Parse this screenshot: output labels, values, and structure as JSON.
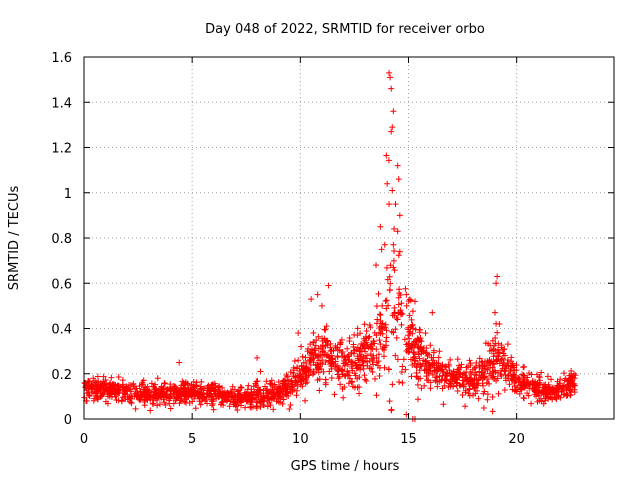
{
  "chart_data": {
    "type": "scatter",
    "title": "Day 048 of 2022, SRMTID for receiver orbo",
    "xlabel": "GPS time / hours",
    "ylabel": "SRMTID / TECUs",
    "xlim": [
      0,
      24.5
    ],
    "ylim": [
      0,
      1.6
    ],
    "xticks": [
      0,
      5,
      10,
      15,
      20
    ],
    "yticks": [
      0,
      0.2,
      0.4,
      0.6,
      0.8,
      1,
      1.2,
      1.4,
      1.6
    ],
    "xtick_labels": [
      "0",
      "5",
      "10",
      "15",
      "20"
    ],
    "ytick_labels": [
      "0",
      "0.2",
      "0.4",
      "0.6",
      "0.8",
      "1",
      "1.2",
      "1.4",
      "1.6"
    ],
    "grid": true,
    "marker": "+",
    "marker_color": "#ff0000",
    "point_count_shown": 2000,
    "profile": {
      "comment": "Approximate SRMTID envelope vs GPS hour (data units) used to regenerate the dense scatter",
      "hours": [
        0,
        1,
        2,
        3,
        4,
        5,
        6,
        7,
        8,
        9,
        10,
        10.5,
        11,
        11.5,
        12,
        12.5,
        13,
        13.5,
        14,
        14.2,
        14.5,
        15,
        15.5,
        16,
        16.5,
        17,
        18,
        18.5,
        19,
        19.3,
        20,
        21,
        22,
        22.8
      ],
      "median": [
        0.13,
        0.13,
        0.12,
        0.11,
        0.11,
        0.12,
        0.11,
        0.09,
        0.1,
        0.12,
        0.18,
        0.25,
        0.3,
        0.25,
        0.22,
        0.25,
        0.28,
        0.35,
        0.45,
        0.55,
        0.5,
        0.35,
        0.28,
        0.22,
        0.2,
        0.18,
        0.17,
        0.2,
        0.25,
        0.28,
        0.16,
        0.13,
        0.13,
        0.18
      ],
      "spread": [
        0.04,
        0.04,
        0.04,
        0.04,
        0.04,
        0.04,
        0.04,
        0.04,
        0.05,
        0.06,
        0.08,
        0.1,
        0.12,
        0.1,
        0.1,
        0.1,
        0.1,
        0.15,
        0.35,
        0.5,
        0.3,
        0.15,
        0.12,
        0.08,
        0.07,
        0.06,
        0.06,
        0.1,
        0.15,
        0.1,
        0.06,
        0.05,
        0.05,
        0.05
      ]
    },
    "peaks": [
      {
        "x": 14.1,
        "y": 1.53
      },
      {
        "x": 14.15,
        "y": 1.51
      },
      {
        "x": 14.2,
        "y": 1.46
      },
      {
        "x": 14.3,
        "y": 1.36
      },
      {
        "x": 14.25,
        "y": 1.29
      },
      {
        "x": 14.2,
        "y": 1.27
      },
      {
        "x": 14.5,
        "y": 1.12
      },
      {
        "x": 14.55,
        "y": 1.06
      },
      {
        "x": 14.25,
        "y": 1.01
      },
      {
        "x": 14.4,
        "y": 0.95
      },
      {
        "x": 14.1,
        "y": 0.95
      },
      {
        "x": 14.6,
        "y": 0.9
      },
      {
        "x": 13.7,
        "y": 0.85
      },
      {
        "x": 14.5,
        "y": 0.83
      },
      {
        "x": 14.3,
        "y": 0.77
      },
      {
        "x": 14.6,
        "y": 0.74
      },
      {
        "x": 14.3,
        "y": 0.67
      },
      {
        "x": 13.5,
        "y": 0.68
      },
      {
        "x": 19.1,
        "y": 0.63
      },
      {
        "x": 19.05,
        "y": 0.6
      },
      {
        "x": 11.3,
        "y": 0.59
      },
      {
        "x": 10.8,
        "y": 0.55
      },
      {
        "x": 14.9,
        "y": 0.55
      },
      {
        "x": 10.5,
        "y": 0.53
      },
      {
        "x": 15.3,
        "y": 0.52
      },
      {
        "x": 11.0,
        "y": 0.5
      },
      {
        "x": 16.1,
        "y": 0.47
      },
      {
        "x": 19.0,
        "y": 0.47
      },
      {
        "x": 19.2,
        "y": 0.42
      },
      {
        "x": 9.9,
        "y": 0.38
      },
      {
        "x": 4.4,
        "y": 0.25
      },
      {
        "x": 8.0,
        "y": 0.27
      },
      {
        "x": 14.9,
        "y": 0.02
      },
      {
        "x": 15.2,
        "y": 0.0
      },
      {
        "x": 15.3,
        "y": 0.0
      }
    ]
  }
}
